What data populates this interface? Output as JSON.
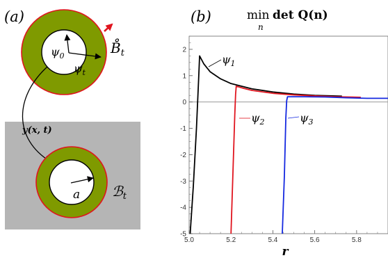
{
  "panel_a": {
    "label": "(a)",
    "ref_region_label": "B̊",
    "ref_region_sub": "t",
    "psi0_label": "ψ",
    "psi0_sub": "0",
    "psit_label": "ψ",
    "psit_sub": "t",
    "map_label": "y(x, t)",
    "a_label": "a",
    "cur_region_label": "ℬ",
    "cur_region_sub": "t",
    "colors": {
      "annulus_fill": "#7f9a00",
      "annulus_edge": "#e0141e",
      "background_block": "#b5b5b5",
      "arrow_red": "#e0141e"
    }
  },
  "panel_b": {
    "label": "(b)",
    "title_min": "min",
    "title_sub": "n",
    "title_rest": "det Q(n)",
    "xlabel": "r",
    "chart_data": {
      "type": "line",
      "xlim": [
        5.0,
        5.95
      ],
      "ylim": [
        -5,
        2.5
      ],
      "xticks": [
        "5.0",
        "5.2",
        "5.4",
        "5.6",
        "5.8"
      ],
      "xtick_values": [
        5.0,
        5.2,
        5.4,
        5.6,
        5.8
      ],
      "yticks": [
        "2",
        "1",
        "0",
        "-1",
        "-2",
        "-3",
        "-4",
        "-5"
      ],
      "ytick_values": [
        2,
        1,
        0,
        -1,
        -2,
        -3,
        -4,
        -5
      ],
      "series": [
        {
          "name": "ψ1",
          "color": "#000000",
          "x": [
            5.005,
            5.02,
            5.035,
            5.045,
            5.05,
            5.07,
            5.1,
            5.15,
            5.2,
            5.3,
            5.4,
            5.5,
            5.6,
            5.73
          ],
          "y": [
            -5.0,
            -3.2,
            -1.0,
            0.8,
            1.75,
            1.45,
            1.15,
            0.88,
            0.7,
            0.5,
            0.38,
            0.3,
            0.25,
            0.22
          ]
        },
        {
          "name": "ψ2",
          "color": "#e0141e",
          "x": [
            5.2,
            5.21,
            5.218,
            5.222,
            5.225,
            5.26,
            5.3,
            5.4,
            5.5,
            5.6,
            5.7,
            5.82
          ],
          "y": [
            -5.0,
            -2.5,
            -0.5,
            0.3,
            0.6,
            0.52,
            0.44,
            0.33,
            0.27,
            0.23,
            0.2,
            0.18
          ]
        },
        {
          "name": "ψ3",
          "color": "#1428e0",
          "x": [
            5.445,
            5.455,
            5.462,
            5.466,
            5.47,
            5.55,
            5.65,
            5.75,
            5.85,
            5.95
          ],
          "y": [
            -5.0,
            -2.8,
            -0.6,
            0.05,
            0.2,
            0.2,
            0.19,
            0.16,
            0.14,
            0.14
          ]
        }
      ]
    },
    "series_labels": [
      {
        "name": "ψ",
        "sub": "1"
      },
      {
        "name": "ψ",
        "sub": "2"
      },
      {
        "name": "ψ",
        "sub": "3"
      }
    ]
  }
}
